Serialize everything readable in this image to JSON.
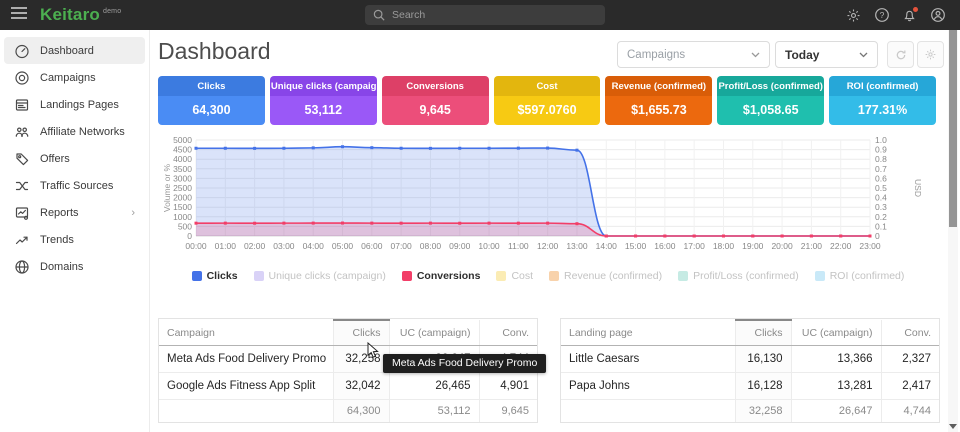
{
  "topbar": {
    "brand": "Keitaro",
    "brand_badge": "demo",
    "brand_color": "#4caf50",
    "search_placeholder": "Search"
  },
  "sidebar": {
    "items": [
      {
        "label": "Dashboard",
        "icon": "gauge-icon",
        "active": true
      },
      {
        "label": "Campaigns",
        "icon": "target-icon",
        "active": false
      },
      {
        "label": "Landings Pages",
        "icon": "pages-icon",
        "active": false
      },
      {
        "label": "Affiliate Networks",
        "icon": "people-icon",
        "active": false
      },
      {
        "label": "Offers",
        "icon": "tag-icon",
        "active": false
      },
      {
        "label": "Traffic Sources",
        "icon": "split-icon",
        "active": false
      },
      {
        "label": "Reports",
        "icon": "report-icon",
        "active": false,
        "chevron": true
      },
      {
        "label": "Trends",
        "icon": "trend-icon",
        "active": false
      },
      {
        "label": "Domains",
        "icon": "globe-icon",
        "active": false
      }
    ]
  },
  "header": {
    "title": "Dashboard",
    "campaign_select": "Campaigns",
    "date_select": "Today"
  },
  "stat_cards": [
    {
      "label": "Clicks",
      "value": "64,300",
      "header_color": "#3c7be0",
      "body_color": "#4a8cf4"
    },
    {
      "label": "Unique clicks (campaign)",
      "value": "53,112",
      "header_color": "#8845e8",
      "body_color": "#9a58f7"
    },
    {
      "label": "Conversions",
      "value": "9,645",
      "header_color": "#dd4067",
      "body_color": "#ec4e7a"
    },
    {
      "label": "Cost",
      "value": "$597.0760",
      "header_color": "#e3b60e",
      "body_color": "#f7ca13"
    },
    {
      "label": "Revenue (confirmed)",
      "value": "$1,655.73",
      "header_color": "#d95d08",
      "body_color": "#ec690e"
    },
    {
      "label": "Profit/Loss (confirmed)",
      "value": "$1,058.65",
      "header_color": "#17a89b",
      "body_color": "#1fbfae"
    },
    {
      "label": "ROI (confirmed)",
      "value": "177.31%",
      "header_color": "#26a7d8",
      "body_color": "#33bce8"
    }
  ],
  "chart_data": {
    "type": "area",
    "x": [
      "00:00",
      "01:00",
      "02:00",
      "03:00",
      "04:00",
      "05:00",
      "06:00",
      "07:00",
      "08:00",
      "09:00",
      "10:00",
      "11:00",
      "12:00",
      "13:00",
      "14:00",
      "15:00",
      "16:00",
      "17:00",
      "18:00",
      "19:00",
      "20:00",
      "21:00",
      "22:00",
      "23:00"
    ],
    "ylabel_left": "Volume or %",
    "ylabel_right": "USD",
    "ylim_left": [
      0,
      5000
    ],
    "ytick_step_left": 500,
    "ylim_right": [
      0,
      1.0
    ],
    "ytick_step_right": 0.1,
    "grid": true,
    "legend_position": "bottom",
    "series": [
      {
        "name": "Clicks",
        "color": "#4472e8",
        "fill_opacity": 0.2,
        "values": [
          4570,
          4570,
          4565,
          4570,
          4590,
          4650,
          4600,
          4570,
          4565,
          4570,
          4570,
          4575,
          4580,
          4470,
          0,
          0,
          0,
          0,
          0,
          0,
          0,
          0,
          0,
          0
        ]
      },
      {
        "name": "Conversions",
        "color": "#f23e68",
        "fill_opacity": 0.2,
        "values": [
          668,
          670,
          665,
          670,
          672,
          675,
          670,
          668,
          670,
          665,
          670,
          668,
          670,
          640,
          0,
          0,
          0,
          0,
          0,
          0,
          0,
          0,
          0,
          0
        ]
      }
    ],
    "legend": [
      {
        "label": "Clicks",
        "color": "#4472e8",
        "active": true
      },
      {
        "label": "Unique clicks (campaign)",
        "color": "#d9d2f7",
        "active": false
      },
      {
        "label": "Conversions",
        "color": "#f23e68",
        "active": true
      },
      {
        "label": "Cost",
        "color": "#fbecb4",
        "active": false
      },
      {
        "label": "Revenue (confirmed)",
        "color": "#f8d2ab",
        "active": false
      },
      {
        "label": "Profit/Loss (confirmed)",
        "color": "#c6ebe4",
        "active": false
      },
      {
        "label": "ROI (confirmed)",
        "color": "#c9e9f8",
        "active": false
      }
    ]
  },
  "tables": [
    {
      "name": "campaigns",
      "columns": [
        "Campaign",
        "Clicks",
        "UC (campaign)",
        "Conv."
      ],
      "sorted_column": "Clicks",
      "rows": [
        [
          "Meta Ads Food Delivery Promo",
          "32,258",
          "26,647",
          "4,744"
        ],
        [
          "Google Ads Fitness App Split",
          "32,042",
          "26,465",
          "4,901"
        ]
      ],
      "totals": [
        "",
        "64,300",
        "53,112",
        "9,645"
      ]
    },
    {
      "name": "landing-pages",
      "columns": [
        "Landing page",
        "Clicks",
        "UC (campaign)",
        "Conv."
      ],
      "sorted_column": "Clicks",
      "rows": [
        [
          "Little Caesars",
          "16,130",
          "13,366",
          "2,327"
        ],
        [
          "Papa Johns",
          "16,128",
          "13,281",
          "2,417"
        ]
      ],
      "totals": [
        "",
        "32,258",
        "26,647",
        "4,744"
      ]
    }
  ],
  "tooltip": {
    "text": "Meta Ads Food Delivery Promo"
  }
}
